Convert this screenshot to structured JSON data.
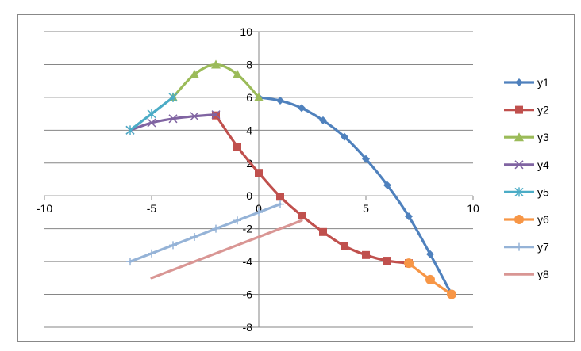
{
  "chart_data": {
    "type": "line",
    "title": "",
    "xlabel": "",
    "ylabel": "",
    "xlim": [
      -10,
      10
    ],
    "ylim": [
      -8,
      10
    ],
    "x_ticks": [
      -10,
      -5,
      0,
      5,
      10
    ],
    "y_ticks": [
      -8,
      -6,
      -4,
      -2,
      0,
      2,
      4,
      6,
      8,
      10
    ],
    "grid": "horizontal major gridlines",
    "legend_position": "right",
    "series": [
      {
        "name": "y1",
        "color": "#4f81bd",
        "marker": "diamond",
        "points": [
          [
            0,
            6
          ],
          [
            1,
            5.8
          ],
          [
            2,
            5.35
          ],
          [
            3,
            4.6
          ],
          [
            4,
            3.6
          ],
          [
            5,
            2.25
          ],
          [
            6,
            0.65
          ],
          [
            7,
            -1.25
          ],
          [
            8,
            -3.55
          ],
          [
            9,
            -6
          ]
        ]
      },
      {
        "name": "y2",
        "color": "#c0504d",
        "marker": "square",
        "points": [
          [
            -2,
            4.9
          ],
          [
            -1,
            3
          ],
          [
            0,
            1.4
          ],
          [
            1,
            -0.05
          ],
          [
            2,
            -1.2
          ],
          [
            3,
            -2.2
          ],
          [
            4,
            -3.05
          ],
          [
            5,
            -3.6
          ],
          [
            6,
            -3.95
          ],
          [
            7,
            -4.1
          ]
        ]
      },
      {
        "name": "y3",
        "color": "#9bbb59",
        "marker": "triangle",
        "points": [
          [
            -4,
            6
          ],
          [
            -3,
            7.4
          ],
          [
            -2,
            8
          ],
          [
            -1,
            7.4
          ],
          [
            0,
            6
          ]
        ]
      },
      {
        "name": "y4",
        "color": "#8064a2",
        "marker": "x",
        "points": [
          [
            -6,
            4
          ],
          [
            -5,
            4.45
          ],
          [
            -4,
            4.7
          ],
          [
            -3,
            4.85
          ],
          [
            -2,
            4.95
          ]
        ]
      },
      {
        "name": "y5",
        "color": "#4bacc6",
        "marker": "star",
        "points": [
          [
            -6,
            4
          ],
          [
            -5,
            5
          ],
          [
            -4,
            6
          ]
        ]
      },
      {
        "name": "y6",
        "color": "#f79646",
        "marker": "circle",
        "points": [
          [
            7,
            -4.1
          ],
          [
            8,
            -5.1
          ],
          [
            9,
            -6
          ]
        ]
      },
      {
        "name": "y7",
        "color": "#95b3d7",
        "marker": "plus",
        "points": [
          [
            -6,
            -4
          ],
          [
            -5,
            -3.5
          ],
          [
            -4,
            -3
          ],
          [
            -3,
            -2.5
          ],
          [
            -2,
            -2
          ],
          [
            -1,
            -1.5
          ],
          [
            0,
            -1
          ],
          [
            1,
            -0.5
          ]
        ]
      },
      {
        "name": "y8",
        "color": "#d99694",
        "marker": "none",
        "points": [
          [
            -5,
            -5
          ],
          [
            -4,
            -4.5
          ],
          [
            -3,
            -4
          ],
          [
            -2,
            -3.5
          ],
          [
            -1,
            -3
          ],
          [
            0,
            -2.5
          ],
          [
            1,
            -2
          ],
          [
            2,
            -1.5
          ]
        ]
      }
    ]
  }
}
